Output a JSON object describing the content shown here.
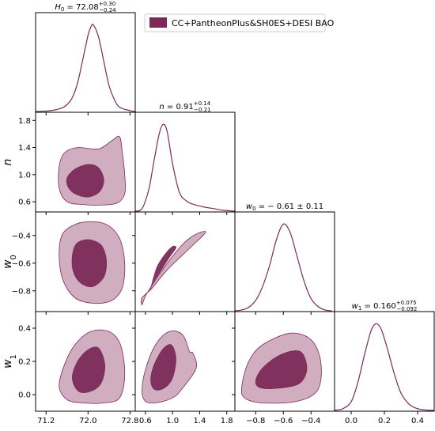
{
  "legend": {
    "label": "CC+PantheonPlus&SH0ES+DESI BAO",
    "color": "#7b2a58"
  },
  "colors": {
    "line": "#7b2a58",
    "inner_fill": "#7b2a58",
    "outer_fill": "#c8a0b4"
  },
  "chart_data": {
    "type": "corner",
    "grid": false,
    "legend_position": "top-right",
    "parameters": [
      {
        "key": "H0",
        "label": "H",
        "sub": "0",
        "range": [
          71.0,
          72.9
        ],
        "ticks": [
          71.2,
          72.0,
          72.8
        ],
        "tick_labels": [
          "71.2",
          "72.0",
          "72.8"
        ],
        "mean": 72.08,
        "err_plus": "+0.30",
        "err_minus": "−0.24",
        "title_main": "H",
        "title_sub": "0",
        "title_value": " = 72.08",
        "title_sup": "+0.30",
        "title_subscript": "−0.24"
      },
      {
        "key": "n",
        "label": "n",
        "sub": "",
        "range": [
          0.45,
          1.92
        ],
        "ticks": [
          0.6,
          1.0,
          1.4,
          1.8
        ],
        "tick_labels": [
          "0.6",
          "1.0",
          "1.4",
          "1.8"
        ],
        "mean": 0.91,
        "err_plus": "+0.14",
        "err_minus": "−0.21",
        "title_main": "n",
        "title_sub": "",
        "title_value": " = 0.91",
        "title_sup": "+0.14",
        "title_subscript": "−0.21"
      },
      {
        "key": "w0",
        "label": "w",
        "sub": "0",
        "range": [
          -0.95,
          -0.23
        ],
        "ticks": [
          -0.8,
          -0.6,
          -0.4
        ],
        "tick_labels": [
          "−0.8",
          "−0.6",
          "−0.4"
        ],
        "mean": -0.61,
        "err": 0.11,
        "title_main": "w",
        "title_sub": "0",
        "title_value": " = − 0.61 ± 0.11",
        "title_sup": "",
        "title_subscript": ""
      },
      {
        "key": "w1",
        "label": "w",
        "sub": "1",
        "range": [
          -0.1,
          0.5
        ],
        "ticks": [
          0.0,
          0.2,
          0.4
        ],
        "tick_labels": [
          "0.0",
          "0.2",
          "0.4"
        ],
        "mean": 0.16,
        "err_plus": "+0.075",
        "err_minus": "−0.092",
        "title_main": "w",
        "title_sub": "1",
        "title_value": " = 0.160",
        "title_sup": "+0.075",
        "title_subscript": "−0.092"
      }
    ],
    "marginals": [
      {
        "param": "H0",
        "x": [
          71.0,
          71.3,
          71.5,
          71.6,
          71.7,
          71.8,
          71.9,
          72.0,
          72.05,
          72.1,
          72.2,
          72.3,
          72.4,
          72.5,
          72.6,
          72.8,
          72.9
        ],
        "y": [
          0.0,
          0.01,
          0.04,
          0.08,
          0.16,
          0.33,
          0.6,
          0.88,
          0.97,
          1.0,
          0.86,
          0.58,
          0.3,
          0.14,
          0.05,
          0.01,
          0.0
        ]
      },
      {
        "param": "n",
        "x": [
          0.45,
          0.55,
          0.65,
          0.72,
          0.8,
          0.86,
          0.92,
          1.0,
          1.1,
          1.2,
          1.3,
          1.45,
          1.6,
          1.75,
          1.92
        ],
        "y": [
          0.0,
          0.03,
          0.25,
          0.55,
          0.88,
          1.0,
          0.92,
          0.55,
          0.22,
          0.12,
          0.08,
          0.05,
          0.03,
          0.01,
          0.0
        ]
      },
      {
        "param": "w0",
        "x": [
          -0.95,
          -0.9,
          -0.85,
          -0.8,
          -0.75,
          -0.7,
          -0.65,
          -0.6,
          -0.55,
          -0.5,
          -0.45,
          -0.4,
          -0.35,
          -0.3,
          -0.25
        ],
        "y": [
          0.0,
          0.01,
          0.04,
          0.12,
          0.28,
          0.52,
          0.82,
          1.0,
          0.9,
          0.62,
          0.34,
          0.14,
          0.05,
          0.01,
          0.0
        ]
      },
      {
        "param": "w1",
        "x": [
          -0.1,
          -0.05,
          0.0,
          0.04,
          0.08,
          0.12,
          0.15,
          0.18,
          0.22,
          0.26,
          0.3,
          0.35,
          0.4,
          0.45,
          0.5
        ],
        "y": [
          0.0,
          0.02,
          0.1,
          0.32,
          0.64,
          0.92,
          1.0,
          0.94,
          0.7,
          0.42,
          0.2,
          0.07,
          0.02,
          0.005,
          0.0
        ]
      }
    ],
    "contours": [
      {
        "x": "H0",
        "y": "n",
        "c95": [
          [
            71.45,
            1.12
          ],
          [
            71.55,
            1.32
          ],
          [
            71.8,
            1.4
          ],
          [
            72.2,
            1.38
          ],
          [
            72.45,
            1.5
          ],
          [
            72.6,
            1.56
          ],
          [
            72.65,
            1.35
          ],
          [
            72.7,
            1.0
          ],
          [
            72.7,
            0.72
          ],
          [
            72.55,
            0.58
          ],
          [
            72.2,
            0.55
          ],
          [
            71.9,
            0.56
          ],
          [
            71.6,
            0.6
          ],
          [
            71.45,
            0.8
          ]
        ],
        "c68": [
          [
            71.6,
            0.95
          ],
          [
            71.75,
            1.08
          ],
          [
            72.0,
            1.15
          ],
          [
            72.2,
            1.1
          ],
          [
            72.3,
            0.92
          ],
          [
            72.22,
            0.75
          ],
          [
            72.0,
            0.67
          ],
          [
            71.75,
            0.72
          ],
          [
            71.62,
            0.82
          ]
        ]
      },
      {
        "x": "H0",
        "y": "w0",
        "c95": [
          [
            71.45,
            -0.55
          ],
          [
            71.5,
            -0.4
          ],
          [
            71.7,
            -0.33
          ],
          [
            72.0,
            -0.3
          ],
          [
            72.35,
            -0.32
          ],
          [
            72.6,
            -0.42
          ],
          [
            72.7,
            -0.6
          ],
          [
            72.65,
            -0.78
          ],
          [
            72.45,
            -0.87
          ],
          [
            72.1,
            -0.89
          ],
          [
            71.75,
            -0.85
          ],
          [
            71.52,
            -0.72
          ]
        ],
        "c68": [
          [
            71.7,
            -0.55
          ],
          [
            71.78,
            -0.46
          ],
          [
            72.0,
            -0.43
          ],
          [
            72.25,
            -0.47
          ],
          [
            72.35,
            -0.58
          ],
          [
            72.3,
            -0.7
          ],
          [
            72.08,
            -0.77
          ],
          [
            71.85,
            -0.74
          ],
          [
            71.72,
            -0.66
          ]
        ]
      },
      {
        "x": "H0",
        "y": "w1",
        "c95": [
          [
            71.45,
            0.05
          ],
          [
            71.55,
            0.18
          ],
          [
            71.75,
            0.3
          ],
          [
            72.05,
            0.38
          ],
          [
            72.4,
            0.38
          ],
          [
            72.62,
            0.3
          ],
          [
            72.7,
            0.12
          ],
          [
            72.6,
            -0.02
          ],
          [
            72.3,
            -0.05
          ],
          [
            71.9,
            -0.05
          ],
          [
            71.6,
            -0.03
          ]
        ],
        "c68": [
          [
            71.7,
            0.1
          ],
          [
            71.8,
            0.2
          ],
          [
            72.0,
            0.27
          ],
          [
            72.2,
            0.28
          ],
          [
            72.32,
            0.18
          ],
          [
            72.25,
            0.07
          ],
          [
            72.05,
            0.02
          ],
          [
            71.82,
            0.02
          ]
        ]
      },
      {
        "x": "n",
        "y": "w0",
        "c95": [
          [
            0.55,
            -0.85
          ],
          [
            0.7,
            -0.78
          ],
          [
            0.9,
            -0.66
          ],
          [
            1.15,
            -0.54
          ],
          [
            1.3,
            -0.47
          ],
          [
            1.45,
            -0.4
          ],
          [
            1.48,
            -0.37
          ],
          [
            1.35,
            -0.39
          ],
          [
            1.2,
            -0.44
          ],
          [
            1.05,
            -0.52
          ],
          [
            0.85,
            -0.65
          ],
          [
            0.62,
            -0.82
          ],
          [
            0.55,
            -0.9
          ]
        ],
        "c68": [
          [
            0.7,
            -0.75
          ],
          [
            0.82,
            -0.66
          ],
          [
            0.95,
            -0.56
          ],
          [
            1.05,
            -0.49
          ],
          [
            1.0,
            -0.48
          ],
          [
            0.9,
            -0.53
          ],
          [
            0.77,
            -0.63
          ],
          [
            0.68,
            -0.78
          ]
        ]
      },
      {
        "x": "n",
        "y": "w1",
        "c95": [
          [
            0.55,
            0.02
          ],
          [
            0.6,
            0.15
          ],
          [
            0.75,
            0.3
          ],
          [
            0.95,
            0.38
          ],
          [
            1.15,
            0.36
          ],
          [
            1.25,
            0.26
          ],
          [
            1.3,
            0.25
          ],
          [
            1.35,
            0.16
          ],
          [
            1.15,
            0.04
          ],
          [
            1.0,
            -0.02
          ],
          [
            0.75,
            -0.05
          ],
          [
            0.6,
            -0.04
          ]
        ],
        "c68": [
          [
            0.68,
            0.08
          ],
          [
            0.72,
            0.17
          ],
          [
            0.85,
            0.27
          ],
          [
            0.98,
            0.3
          ],
          [
            1.05,
            0.22
          ],
          [
            1.0,
            0.1
          ],
          [
            0.88,
            0.04
          ],
          [
            0.74,
            0.03
          ]
        ]
      },
      {
        "x": "w0",
        "y": "w1",
        "c95": [
          [
            -0.9,
            0.05
          ],
          [
            -0.85,
            0.2
          ],
          [
            -0.75,
            0.3
          ],
          [
            -0.55,
            0.37
          ],
          [
            -0.4,
            0.33
          ],
          [
            -0.33,
            0.2
          ],
          [
            -0.35,
            0.03
          ],
          [
            -0.5,
            -0.04
          ],
          [
            -0.75,
            -0.05
          ],
          [
            -0.88,
            -0.02
          ]
        ],
        "c68": [
          [
            -0.8,
            0.08
          ],
          [
            -0.75,
            0.16
          ],
          [
            -0.62,
            0.24
          ],
          [
            -0.48,
            0.26
          ],
          [
            -0.43,
            0.16
          ],
          [
            -0.48,
            0.07
          ],
          [
            -0.62,
            0.04
          ],
          [
            -0.76,
            0.04
          ]
        ]
      }
    ]
  }
}
